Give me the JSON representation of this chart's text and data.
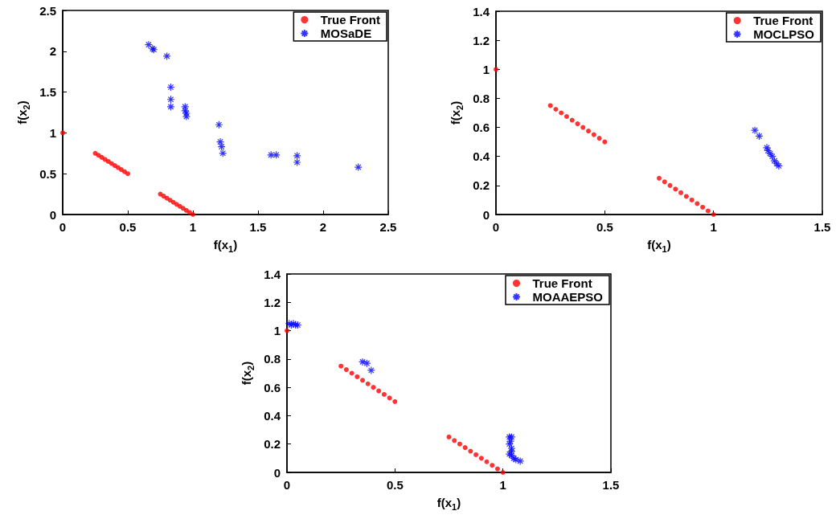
{
  "chart_data": [
    {
      "type": "scatter",
      "xlabel": "f(x$_{1}$)",
      "ylabel": "f(x$_{2}$)",
      "xlim": [
        0,
        2.5
      ],
      "xticks": [
        0,
        0.5,
        1,
        1.5,
        2,
        2.5
      ],
      "ylim": [
        0,
        2.5
      ],
      "yticks": [
        0,
        0.5,
        1,
        1.5,
        2,
        2.5
      ],
      "grid": false,
      "legend": "top right",
      "series": [
        {
          "name": "True Front",
          "color": "#ff0000",
          "marker": "circle",
          "x": [
            0,
            0.25,
            0.275,
            0.3,
            0.325,
            0.35,
            0.375,
            0.4,
            0.425,
            0.45,
            0.475,
            0.5,
            0.75,
            0.775,
            0.8,
            0.825,
            0.85,
            0.875,
            0.9,
            0.925,
            0.95,
            0.975,
            1
          ],
          "values": [
            1,
            0.75,
            0.725,
            0.7,
            0.675,
            0.65,
            0.625,
            0.6,
            0.575,
            0.55,
            0.525,
            0.5,
            0.25,
            0.225,
            0.2,
            0.175,
            0.15,
            0.125,
            0.1,
            0.075,
            0.05,
            0.025,
            0
          ]
        },
        {
          "name": "MOSaDE",
          "color": "#0000ff",
          "marker": "cross",
          "x": [
            0.66,
            0.69,
            0.7,
            0.8,
            0.83,
            0.83,
            0.83,
            0.94,
            0.94,
            0.95,
            0.95,
            1.2,
            1.21,
            1.22,
            1.23,
            1.6,
            1.64,
            1.8,
            1.8,
            2.27
          ],
          "values": [
            2.08,
            2.03,
            2.02,
            1.94,
            1.56,
            1.41,
            1.32,
            1.32,
            1.27,
            1.24,
            1.2,
            1.1,
            0.89,
            0.83,
            0.75,
            0.73,
            0.73,
            0.72,
            0.64,
            0.58
          ]
        }
      ]
    },
    {
      "type": "scatter",
      "xlabel": "f(x$_{1}$)",
      "ylabel": "f(x$_{2}$)",
      "xlim": [
        0,
        1.5
      ],
      "xticks": [
        0,
        0.5,
        1,
        1.5
      ],
      "ylim": [
        0,
        1.4
      ],
      "yticks": [
        0,
        0.2,
        0.4,
        0.6,
        0.8,
        1,
        1.2,
        1.4
      ],
      "grid": false,
      "legend": "top right",
      "series": [
        {
          "name": "True Front",
          "color": "#ff0000",
          "marker": "circle",
          "x": [
            0,
            0.25,
            0.275,
            0.3,
            0.325,
            0.35,
            0.375,
            0.4,
            0.425,
            0.45,
            0.475,
            0.5,
            0.75,
            0.775,
            0.8,
            0.825,
            0.85,
            0.875,
            0.9,
            0.925,
            0.95,
            0.975,
            1
          ],
          "values": [
            1,
            0.75,
            0.725,
            0.7,
            0.675,
            0.65,
            0.625,
            0.6,
            0.575,
            0.55,
            0.525,
            0.5,
            0.25,
            0.225,
            0.2,
            0.175,
            0.15,
            0.125,
            0.1,
            0.075,
            0.05,
            0.025,
            0
          ]
        },
        {
          "name": "MOCLPSO",
          "color": "#0000ff",
          "marker": "cross",
          "x": [
            1.19,
            1.21,
            1.245,
            1.25,
            1.26,
            1.27,
            1.28,
            1.29,
            1.3
          ],
          "values": [
            0.58,
            0.54,
            0.46,
            0.44,
            0.42,
            0.4,
            0.37,
            0.35,
            0.335
          ]
        }
      ]
    },
    {
      "type": "scatter",
      "xlabel": "f(x$_{1}$)",
      "ylabel": "f(x$_{2}$)",
      "xlim": [
        0,
        1.5
      ],
      "xticks": [
        0,
        0.5,
        1,
        1.5
      ],
      "ylim": [
        0,
        1.4
      ],
      "yticks": [
        0,
        0.2,
        0.4,
        0.6,
        0.8,
        1,
        1.2,
        1.4
      ],
      "grid": false,
      "legend": "top right",
      "series": [
        {
          "name": "True Front",
          "color": "#ff0000",
          "marker": "circle",
          "x": [
            0,
            0.25,
            0.275,
            0.3,
            0.325,
            0.35,
            0.375,
            0.4,
            0.425,
            0.45,
            0.475,
            0.5,
            0.75,
            0.775,
            0.8,
            0.825,
            0.85,
            0.875,
            0.9,
            0.925,
            0.95,
            0.975,
            1
          ],
          "values": [
            1,
            0.75,
            0.725,
            0.7,
            0.675,
            0.65,
            0.625,
            0.6,
            0.575,
            0.55,
            0.525,
            0.5,
            0.25,
            0.225,
            0.2,
            0.175,
            0.15,
            0.125,
            0.1,
            0.075,
            0.05,
            0.025,
            0
          ]
        },
        {
          "name": "MOAAEPSO",
          "color": "#0000ff",
          "marker": "cross",
          "x": [
            0.01,
            0.02,
            0.03,
            0.04,
            0.05,
            0.35,
            0.37,
            0.39,
            1.03,
            1.04,
            1.035,
            1.03,
            1.04,
            1.04,
            1.03,
            1.04,
            1.05,
            1.06,
            1.08
          ],
          "values": [
            1.05,
            1.04,
            1.05,
            1.04,
            1.04,
            0.78,
            0.77,
            0.72,
            0.25,
            0.25,
            0.22,
            0.2,
            0.17,
            0.15,
            0.13,
            0.12,
            0.1,
            0.09,
            0.08
          ]
        }
      ]
    }
  ]
}
